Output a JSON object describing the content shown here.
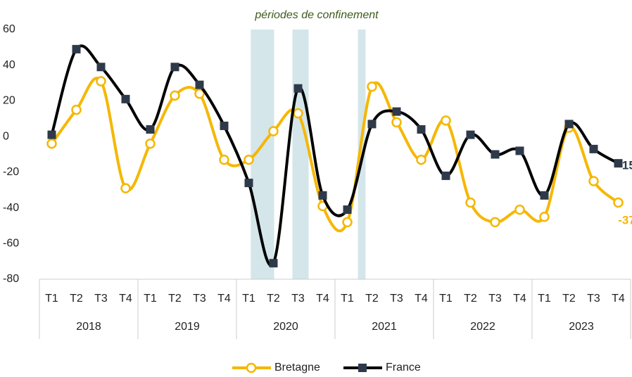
{
  "chart_data": {
    "type": "line",
    "annotation": "périodes de confinement",
    "categories": [
      "T1",
      "T2",
      "T3",
      "T4",
      "T1",
      "T2",
      "T3",
      "T4",
      "T1",
      "T2",
      "T3",
      "T4",
      "T1",
      "T2",
      "T3",
      "T4",
      "T1",
      "T2",
      "T3",
      "T4",
      "T1",
      "T2",
      "T3",
      "T4"
    ],
    "groups": [
      "2018",
      "2019",
      "2020",
      "2021",
      "2022",
      "2023"
    ],
    "series": [
      {
        "name": "Bretagne",
        "color": "#f5b700",
        "marker": "circle",
        "values": [
          -4,
          15,
          31,
          -29,
          -4,
          23,
          24,
          -13,
          -13,
          3,
          13,
          -39,
          -48,
          28,
          8,
          -13,
          9,
          -37,
          -48,
          -41,
          -45,
          5,
          -25,
          -37
        ]
      },
      {
        "name": "France",
        "color": "#000000",
        "marker": "square",
        "values": [
          1,
          49,
          39,
          21,
          4,
          39,
          29,
          6,
          -26,
          -71,
          27,
          -33,
          -41,
          7,
          14,
          4,
          -22,
          1,
          -10,
          -8,
          -33,
          7,
          -7,
          -15
        ]
      }
    ],
    "ylim": [
      -80,
      60
    ],
    "yticks": [
      -80,
      -60,
      -40,
      -20,
      0,
      20,
      40,
      60
    ]
  }
}
